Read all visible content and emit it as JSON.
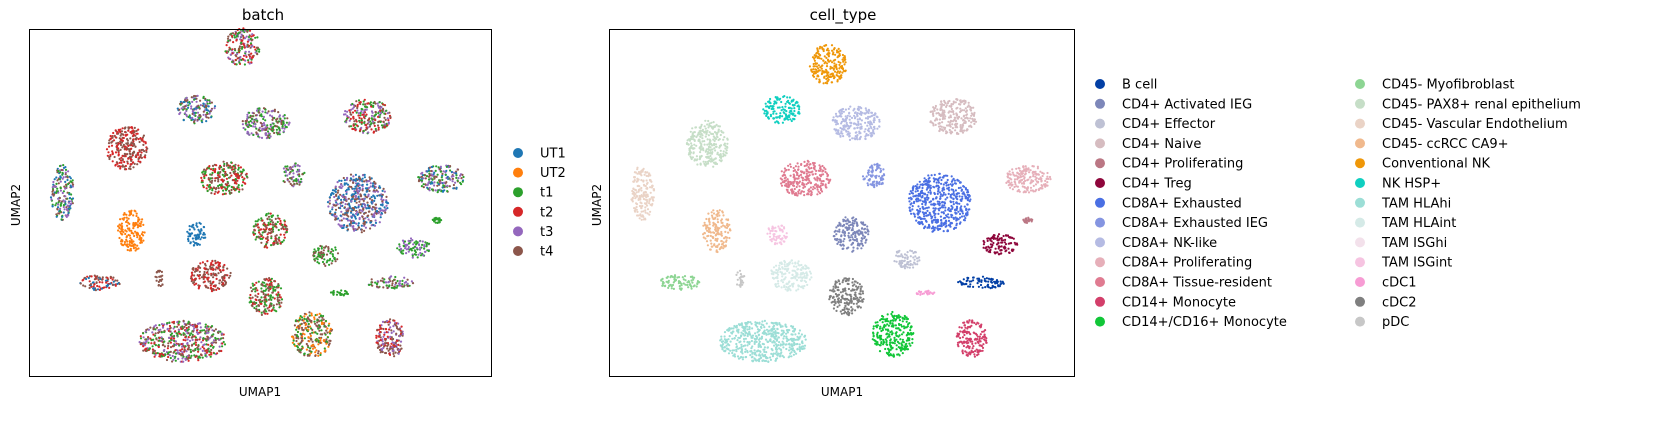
{
  "chart_data": [
    {
      "type": "scatter",
      "title": "batch",
      "xlabel": "UMAP1",
      "ylabel": "UMAP2",
      "legend_placement": "right",
      "legend": [
        {
          "label": "UT1",
          "color": "#1f77b4"
        },
        {
          "label": "UT2",
          "color": "#ff7f0e"
        },
        {
          "label": "t1",
          "color": "#2ca02c"
        },
        {
          "label": "t2",
          "color": "#d62728"
        },
        {
          "label": "t3",
          "color": "#9467bd"
        },
        {
          "label": "t4",
          "color": "#8c564b"
        }
      ],
      "clusters": [
        {
          "x": 0.46,
          "y": 0.05,
          "rx": 0.038,
          "ry": 0.055,
          "colors": [
            "#8c564b",
            "#2ca02c",
            "#d62728",
            "#9467bd"
          ]
        },
        {
          "x": 0.36,
          "y": 0.23,
          "rx": 0.042,
          "ry": 0.04,
          "colors": [
            "#8c564b",
            "#2ca02c",
            "#9467bd",
            "#1f77b4"
          ]
        },
        {
          "x": 0.51,
          "y": 0.27,
          "rx": 0.052,
          "ry": 0.045,
          "colors": [
            "#9467bd",
            "#8c564b",
            "#2ca02c"
          ]
        },
        {
          "x": 0.73,
          "y": 0.25,
          "rx": 0.052,
          "ry": 0.05,
          "colors": [
            "#8c564b",
            "#2ca02c",
            "#d62728",
            "#9467bd"
          ]
        },
        {
          "x": 0.21,
          "y": 0.34,
          "rx": 0.045,
          "ry": 0.065,
          "colors": [
            "#d62728",
            "#8c564b"
          ]
        },
        {
          "x": 0.07,
          "y": 0.47,
          "rx": 0.025,
          "ry": 0.08,
          "colors": [
            "#8c564b",
            "#1f77b4",
            "#2ca02c",
            "#9467bd"
          ]
        },
        {
          "x": 0.42,
          "y": 0.43,
          "rx": 0.052,
          "ry": 0.05,
          "colors": [
            "#8c564b",
            "#d62728",
            "#2ca02c"
          ]
        },
        {
          "x": 0.57,
          "y": 0.42,
          "rx": 0.025,
          "ry": 0.035,
          "colors": [
            "#2ca02c",
            "#9467bd",
            "#8c564b"
          ]
        },
        {
          "x": 0.71,
          "y": 0.5,
          "rx": 0.065,
          "ry": 0.085,
          "colors": [
            "#9467bd",
            "#8c564b",
            "#1f77b4"
          ]
        },
        {
          "x": 0.89,
          "y": 0.43,
          "rx": 0.05,
          "ry": 0.04,
          "colors": [
            "#9467bd",
            "#2ca02c",
            "#8c564b",
            "#1f77b4"
          ]
        },
        {
          "x": 0.22,
          "y": 0.58,
          "rx": 0.03,
          "ry": 0.06,
          "colors": [
            "#ff7f0e"
          ]
        },
        {
          "x": 0.36,
          "y": 0.59,
          "rx": 0.022,
          "ry": 0.035,
          "colors": [
            "#1f77b4"
          ]
        },
        {
          "x": 0.52,
          "y": 0.58,
          "rx": 0.038,
          "ry": 0.05,
          "colors": [
            "#8c564b",
            "#2ca02c",
            "#d62728"
          ]
        },
        {
          "x": 0.64,
          "y": 0.65,
          "rx": 0.028,
          "ry": 0.032,
          "colors": [
            "#8c564b",
            "#2ca02c"
          ]
        },
        {
          "x": 0.83,
          "y": 0.63,
          "rx": 0.038,
          "ry": 0.028,
          "colors": [
            "#9467bd",
            "#2ca02c"
          ]
        },
        {
          "x": 0.88,
          "y": 0.55,
          "rx": 0.01,
          "ry": 0.008,
          "colors": [
            "#2ca02c"
          ]
        },
        {
          "x": 0.15,
          "y": 0.73,
          "rx": 0.045,
          "ry": 0.022,
          "colors": [
            "#1f77b4",
            "#8c564b",
            "#d62728"
          ]
        },
        {
          "x": 0.39,
          "y": 0.71,
          "rx": 0.045,
          "ry": 0.045,
          "colors": [
            "#d62728",
            "#8c564b"
          ]
        },
        {
          "x": 0.51,
          "y": 0.77,
          "rx": 0.038,
          "ry": 0.055,
          "colors": [
            "#8c564b",
            "#d62728",
            "#2ca02c"
          ]
        },
        {
          "x": 0.78,
          "y": 0.73,
          "rx": 0.05,
          "ry": 0.018,
          "colors": [
            "#8c564b",
            "#2ca02c",
            "#9467bd"
          ]
        },
        {
          "x": 0.67,
          "y": 0.76,
          "rx": 0.02,
          "ry": 0.008,
          "colors": [
            "#2ca02c"
          ]
        },
        {
          "x": 0.28,
          "y": 0.72,
          "rx": 0.01,
          "ry": 0.025,
          "colors": [
            "#8c564b"
          ]
        },
        {
          "x": 0.33,
          "y": 0.9,
          "rx": 0.095,
          "ry": 0.06,
          "colors": [
            "#8c564b",
            "#d62728",
            "#9467bd",
            "#2ca02c"
          ]
        },
        {
          "x": 0.61,
          "y": 0.88,
          "rx": 0.045,
          "ry": 0.065,
          "colors": [
            "#8c564b",
            "#ff7f0e",
            "#2ca02c"
          ]
        },
        {
          "x": 0.78,
          "y": 0.89,
          "rx": 0.033,
          "ry": 0.055,
          "colors": [
            "#8c564b",
            "#d62728",
            "#9467bd"
          ]
        }
      ]
    },
    {
      "type": "scatter",
      "title": "cell_type",
      "xlabel": "UMAP1",
      "ylabel": "UMAP2",
      "legend_placement": "right",
      "legend_columns": 2,
      "legend": [
        {
          "label": "B cell",
          "color": "#023fa5"
        },
        {
          "label": "CD4+ Activated IEG",
          "color": "#7d87b9"
        },
        {
          "label": "CD4+ Effector",
          "color": "#bec1d4"
        },
        {
          "label": "CD4+ Naive",
          "color": "#d6bcc0"
        },
        {
          "label": "CD4+ Proliferating",
          "color": "#bb7784"
        },
        {
          "label": "CD4+ Treg",
          "color": "#8e063b"
        },
        {
          "label": "CD8A+ Exhausted",
          "color": "#4a6fe3"
        },
        {
          "label": "CD8A+ Exhausted IEG",
          "color": "#8595e1"
        },
        {
          "label": "CD8A+ NK-like",
          "color": "#b5bbe3"
        },
        {
          "label": "CD8A+ Proliferating",
          "color": "#e6afb9"
        },
        {
          "label": "CD8A+ Tissue-resident",
          "color": "#e07b91"
        },
        {
          "label": "CD14+ Monocyte",
          "color": "#d33f6a"
        },
        {
          "label": "CD14+/CD16+ Monocyte",
          "color": "#11c638"
        },
        {
          "label": "CD45- Myofibroblast",
          "color": "#8dd593"
        },
        {
          "label": "CD45- PAX8+ renal epithelium",
          "color": "#c6dec7"
        },
        {
          "label": "CD45- Vascular Endothelium",
          "color": "#ead3c6"
        },
        {
          "label": "CD45- ccRCC CA9+",
          "color": "#f0b98d"
        },
        {
          "label": "Conventional NK",
          "color": "#ef9708"
        },
        {
          "label": "NK HSP+",
          "color": "#0fcfc0"
        },
        {
          "label": "TAM HLAhi",
          "color": "#9cded6"
        },
        {
          "label": "TAM HLAint",
          "color": "#d5eae7"
        },
        {
          "label": "TAM ISGhi",
          "color": "#f3e1eb"
        },
        {
          "label": "TAM ISGint",
          "color": "#f6c4e1"
        },
        {
          "label": "cDC1",
          "color": "#f79cd4"
        },
        {
          "label": "cDC2",
          "color": "#7f7f7f"
        },
        {
          "label": "pDC",
          "color": "#c7c7c7"
        }
      ],
      "clusters": [
        {
          "x": 0.47,
          "y": 0.1,
          "rx": 0.04,
          "ry": 0.058,
          "colors": [
            "#ef9708"
          ]
        },
        {
          "x": 0.37,
          "y": 0.23,
          "rx": 0.04,
          "ry": 0.04,
          "colors": [
            "#0fcfc0"
          ]
        },
        {
          "x": 0.53,
          "y": 0.27,
          "rx": 0.052,
          "ry": 0.05,
          "colors": [
            "#b5bbe3"
          ]
        },
        {
          "x": 0.74,
          "y": 0.25,
          "rx": 0.052,
          "ry": 0.052,
          "colors": [
            "#d6bcc0"
          ]
        },
        {
          "x": 0.21,
          "y": 0.33,
          "rx": 0.045,
          "ry": 0.068,
          "colors": [
            "#c6dec7"
          ]
        },
        {
          "x": 0.07,
          "y": 0.47,
          "rx": 0.025,
          "ry": 0.08,
          "colors": [
            "#ead3c6"
          ]
        },
        {
          "x": 0.42,
          "y": 0.43,
          "rx": 0.055,
          "ry": 0.052,
          "colors": [
            "#e07b91"
          ]
        },
        {
          "x": 0.57,
          "y": 0.42,
          "rx": 0.025,
          "ry": 0.035,
          "colors": [
            "#8595e1"
          ]
        },
        {
          "x": 0.71,
          "y": 0.5,
          "rx": 0.068,
          "ry": 0.085,
          "colors": [
            "#4a6fe3"
          ]
        },
        {
          "x": 0.9,
          "y": 0.43,
          "rx": 0.05,
          "ry": 0.04,
          "colors": [
            "#e6afb9"
          ]
        },
        {
          "x": 0.23,
          "y": 0.58,
          "rx": 0.03,
          "ry": 0.062,
          "colors": [
            "#f0b98d"
          ]
        },
        {
          "x": 0.36,
          "y": 0.59,
          "rx": 0.022,
          "ry": 0.032,
          "colors": [
            "#f6c4e1"
          ]
        },
        {
          "x": 0.52,
          "y": 0.59,
          "rx": 0.038,
          "ry": 0.052,
          "colors": [
            "#7d87b9"
          ]
        },
        {
          "x": 0.64,
          "y": 0.66,
          "rx": 0.028,
          "ry": 0.03,
          "colors": [
            "#bec1d4"
          ]
        },
        {
          "x": 0.84,
          "y": 0.62,
          "rx": 0.038,
          "ry": 0.03,
          "colors": [
            "#8e063b"
          ]
        },
        {
          "x": 0.9,
          "y": 0.55,
          "rx": 0.01,
          "ry": 0.008,
          "colors": [
            "#bb7784"
          ]
        },
        {
          "x": 0.15,
          "y": 0.73,
          "rx": 0.045,
          "ry": 0.022,
          "colors": [
            "#8dd593"
          ]
        },
        {
          "x": 0.39,
          "y": 0.71,
          "rx": 0.045,
          "ry": 0.045,
          "colors": [
            "#d5eae7"
          ]
        },
        {
          "x": 0.51,
          "y": 0.77,
          "rx": 0.038,
          "ry": 0.055,
          "colors": [
            "#7f7f7f"
          ]
        },
        {
          "x": 0.8,
          "y": 0.73,
          "rx": 0.05,
          "ry": 0.018,
          "colors": [
            "#023fa5"
          ]
        },
        {
          "x": 0.68,
          "y": 0.76,
          "rx": 0.02,
          "ry": 0.008,
          "colors": [
            "#f79cd4"
          ]
        },
        {
          "x": 0.28,
          "y": 0.72,
          "rx": 0.01,
          "ry": 0.025,
          "colors": [
            "#c7c7c7"
          ]
        },
        {
          "x": 0.33,
          "y": 0.9,
          "rx": 0.095,
          "ry": 0.06,
          "colors": [
            "#9cded6"
          ]
        },
        {
          "x": 0.61,
          "y": 0.88,
          "rx": 0.045,
          "ry": 0.065,
          "colors": [
            "#11c638"
          ]
        },
        {
          "x": 0.78,
          "y": 0.89,
          "rx": 0.033,
          "ry": 0.055,
          "colors": [
            "#d33f6a"
          ]
        }
      ]
    }
  ]
}
